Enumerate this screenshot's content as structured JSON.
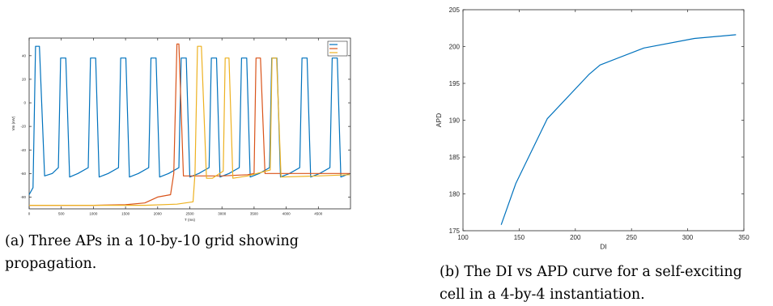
{
  "captions": {
    "a": "(a) Three APs in a 10-by-10 grid showing propagation.",
    "b": "(b) The DI vs APD curve for a self-exciting cell in a 4-by-4 instantiation."
  },
  "chart_data": [
    {
      "type": "line",
      "title": "",
      "xlabel": "T (ms)",
      "ylabel": "Vm (mV)",
      "xlim": [
        0,
        5000
      ],
      "ylim": [
        -90,
        55
      ],
      "xticks": [
        0,
        500,
        1000,
        1500,
        2000,
        2500,
        3000,
        3500,
        4000,
        4500
      ],
      "yticks": [
        -80,
        -60,
        -40,
        -20,
        0,
        20,
        40
      ],
      "legend": {
        "placement": "top-right",
        "entries": [
          "",
          "",
          ""
        ]
      },
      "colors": [
        "#0072bd",
        "#d95319",
        "#edb120"
      ],
      "series": [
        {
          "name": "",
          "points": [
            [
              0,
              -78
            ],
            [
              60,
              -72
            ],
            [
              100,
              48
            ],
            [
              160,
              48
            ],
            [
              240,
              -62
            ],
            [
              360,
              -60
            ],
            [
              455,
              -55
            ],
            [
              490,
              38
            ],
            [
              570,
              38
            ],
            [
              630,
              -63
            ],
            [
              760,
              -60
            ],
            [
              920,
              -55
            ],
            [
              955,
              38
            ],
            [
              1035,
              38
            ],
            [
              1090,
              -63
            ],
            [
              1230,
              -60
            ],
            [
              1390,
              -55
            ],
            [
              1425,
              38
            ],
            [
              1505,
              38
            ],
            [
              1560,
              -63
            ],
            [
              1700,
              -60
            ],
            [
              1860,
              -55
            ],
            [
              1895,
              38
            ],
            [
              1975,
              38
            ],
            [
              2030,
              -63
            ],
            [
              2170,
              -60
            ],
            [
              2330,
              -55
            ],
            [
              2365,
              38
            ],
            [
              2445,
              38
            ],
            [
              2500,
              -63
            ],
            [
              2640,
              -60
            ],
            [
              2800,
              -55
            ],
            [
              2835,
              38
            ],
            [
              2915,
              38
            ],
            [
              2970,
              -63
            ],
            [
              3110,
              -60
            ],
            [
              3270,
              -55
            ],
            [
              3305,
              38
            ],
            [
              3385,
              38
            ],
            [
              3440,
              -63
            ],
            [
              3580,
              -60
            ],
            [
              3740,
              -55
            ],
            [
              3775,
              38
            ],
            [
              3855,
              38
            ],
            [
              3910,
              -63
            ],
            [
              4050,
              -60
            ],
            [
              4210,
              -55
            ],
            [
              4245,
              38
            ],
            [
              4325,
              38
            ],
            [
              4380,
              -63
            ],
            [
              4520,
              -60
            ],
            [
              4680,
              -55
            ],
            [
              4715,
              38
            ],
            [
              4795,
              38
            ],
            [
              4850,
              -63
            ],
            [
              4990,
              -60
            ]
          ]
        },
        {
          "name": "",
          "points": [
            [
              0,
              -87
            ],
            [
              500,
              -87
            ],
            [
              1000,
              -87
            ],
            [
              1500,
              -86.5
            ],
            [
              1800,
              -85
            ],
            [
              2000,
              -80
            ],
            [
              2200,
              -78
            ],
            [
              2250,
              -60
            ],
            [
              2300,
              50
            ],
            [
              2330,
              50
            ],
            [
              2400,
              -62
            ],
            [
              2700,
              -62
            ],
            [
              3000,
              -62
            ],
            [
              3400,
              -61
            ],
            [
              3500,
              -60
            ],
            [
              3530,
              38
            ],
            [
              3600,
              38
            ],
            [
              3670,
              -60
            ],
            [
              4200,
              -60
            ],
            [
              4990,
              -60
            ]
          ]
        },
        {
          "name": "",
          "points": [
            [
              0,
              -87
            ],
            [
              1000,
              -87
            ],
            [
              1800,
              -87
            ],
            [
              2300,
              -86
            ],
            [
              2550,
              -84
            ],
            [
              2580,
              -60
            ],
            [
              2620,
              48
            ],
            [
              2680,
              48
            ],
            [
              2760,
              -64
            ],
            [
              2850,
              -64
            ],
            [
              3020,
              -58
            ],
            [
              3050,
              38
            ],
            [
              3110,
              38
            ],
            [
              3170,
              -64
            ],
            [
              3400,
              -62
            ],
            [
              3750,
              -57
            ],
            [
              3780,
              38
            ],
            [
              3850,
              38
            ],
            [
              3920,
              -63
            ],
            [
              4500,
              -62
            ],
            [
              4990,
              -61
            ]
          ]
        }
      ]
    },
    {
      "type": "line",
      "title": "",
      "xlabel": "DI",
      "ylabel": "APD",
      "xlim": [
        100,
        350
      ],
      "ylim": [
        175,
        205
      ],
      "xticks": [
        100,
        150,
        200,
        250,
        300,
        350
      ],
      "yticks": [
        175,
        180,
        185,
        190,
        195,
        200,
        205
      ],
      "colors": [
        "#0072bd"
      ],
      "series": [
        {
          "name": "",
          "x": [
            134,
            147,
            175,
            212,
            222,
            261,
            306,
            343
          ],
          "y": [
            175.8,
            181.4,
            190.2,
            196.2,
            197.5,
            199.8,
            201.1,
            201.6
          ]
        }
      ]
    }
  ]
}
